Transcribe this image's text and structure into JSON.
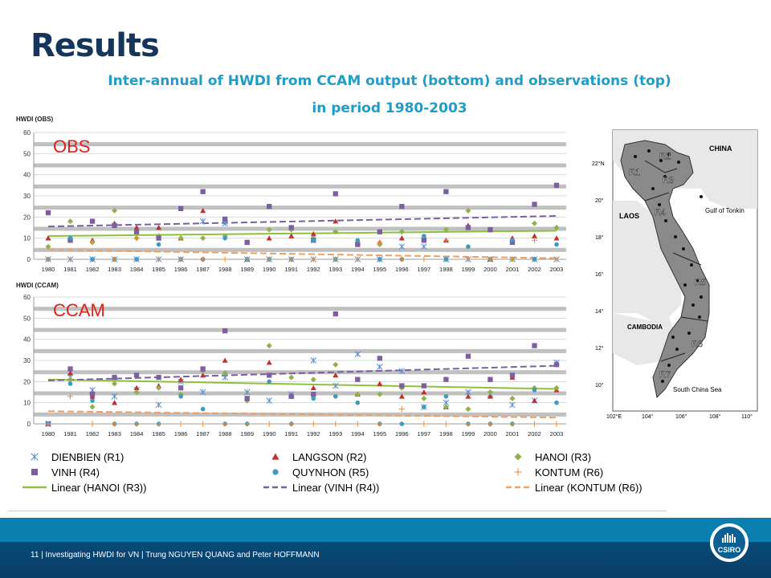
{
  "slide": {
    "title": "Results",
    "subtitle_line1": "Inter-annual of HWDI from CCAM output (bottom) and observations (top)",
    "subtitle_line2": "in period 1980-2003",
    "footer": "11 | Investigating HWDI for VN | Trung NGUYEN QUANG and Peter HOFFMANN",
    "logo_text": "CSIRO"
  },
  "map": {
    "labels": [
      "CHINA",
      "LAOS",
      "Gulf of Tonkin",
      "CAMBODIA",
      "South China Sea"
    ],
    "regions": [
      "R1",
      "R2",
      "R3",
      "R4",
      "R5",
      "R6",
      "R7"
    ],
    "lat_labels": [
      "22°N",
      "20°",
      "18°",
      "16°",
      "14°",
      "12°",
      "10°"
    ],
    "lon_labels": [
      "102°E",
      "104°",
      "106°",
      "108°",
      "110°"
    ]
  },
  "legend": [
    {
      "key": "dienbien",
      "label": "DIENBIEN (R1)",
      "marker": "asterisk",
      "color": "#5b8fd1"
    },
    {
      "key": "langson",
      "label": "LANGSON (R2)",
      "marker": "triangle",
      "color": "#c0302d"
    },
    {
      "key": "hanoi",
      "label": "HANOI (R3)",
      "marker": "diamond",
      "color": "#8fb04a"
    },
    {
      "key": "vinh",
      "label": "VINH (R4)",
      "marker": "square",
      "color": "#7b5fa0"
    },
    {
      "key": "quynhon",
      "label": "QUYNHON (R5)",
      "marker": "circle",
      "color": "#3a9cc0"
    },
    {
      "key": "kontum",
      "label": "KONTUM (R6)",
      "marker": "plus",
      "color": "#f08a30"
    },
    {
      "key": "lin_hanoi",
      "label": "Linear (HANOI (R3))",
      "marker": "line-solid",
      "color": "#8fc040"
    },
    {
      "key": "lin_vinh",
      "label": "Linear (VINH (R4))",
      "marker": "line-dash",
      "color": "#7b5fa0"
    },
    {
      "key": "lin_kontum",
      "label": "Linear (KONTUM (R6))",
      "marker": "line-dash",
      "color": "#f0a060"
    }
  ],
  "chart_data": [
    {
      "type": "scatter",
      "id": "obs",
      "title": "OBS",
      "ylabel": "HWDI (OBS)",
      "ylim": [
        0,
        60
      ],
      "yticks": [
        0,
        10,
        20,
        30,
        40,
        50,
        60
      ],
      "x": [
        "1980",
        "1981",
        "1982",
        "1983",
        "1984",
        "1985",
        "1986",
        "1987",
        "1988",
        "1989",
        "1990",
        "1991",
        "1992",
        "1993",
        "1994",
        "1995",
        "1996",
        "1997",
        "1998",
        "1999",
        "2000",
        "2001",
        "2002",
        "2003"
      ],
      "grid": "horizontal-bands",
      "series": [
        {
          "key": "dienbien",
          "values": [
            0,
            0,
            0,
            0,
            0,
            0,
            0,
            18,
            17,
            0,
            0,
            0,
            0,
            0,
            0,
            0,
            6,
            6,
            0,
            0,
            0,
            0,
            0,
            0
          ]
        },
        {
          "key": "langson",
          "values": [
            10,
            10,
            9,
            17,
            15,
            15,
            10,
            23,
            19,
            0,
            10,
            11,
            12,
            18,
            8,
            8,
            10,
            10,
            9,
            16,
            0,
            10,
            11,
            10
          ]
        },
        {
          "key": "hanoi",
          "values": [
            6,
            18,
            8,
            23,
            10,
            11,
            10,
            10,
            11,
            8,
            14,
            14,
            10,
            13,
            8,
            7,
            13,
            10,
            14,
            23,
            0,
            0,
            17,
            15
          ]
        },
        {
          "key": "vinh",
          "values": [
            22,
            9,
            18,
            16,
            13,
            10,
            24,
            32,
            19,
            8,
            25,
            15,
            9,
            31,
            7,
            13,
            25,
            9,
            32,
            15,
            14,
            8,
            26,
            35
          ]
        },
        {
          "key": "quynhon",
          "values": [
            0,
            10,
            0,
            0,
            0,
            7,
            0,
            0,
            10,
            0,
            0,
            0,
            9,
            0,
            9,
            0,
            0,
            11,
            0,
            6,
            0,
            9,
            0,
            7
          ]
        },
        {
          "key": "kontum",
          "values": [
            0,
            0,
            8,
            0,
            10,
            0,
            0,
            0,
            0,
            0,
            0,
            0,
            0,
            0,
            0,
            8,
            0,
            0,
            9,
            0,
            0,
            0,
            9,
            0
          ]
        }
      ],
      "trends": [
        {
          "key": "lin_hanoi",
          "start": 11,
          "end": 13.5
        },
        {
          "key": "lin_vinh",
          "start": 15.5,
          "end": 20.5
        },
        {
          "key": "lin_kontum",
          "start": 4.5,
          "end": 0.5
        }
      ]
    },
    {
      "type": "scatter",
      "id": "ccam",
      "title": "CCAM",
      "ylabel": "HWDI (CCAM)",
      "ylim": [
        0,
        60
      ],
      "yticks": [
        0,
        10,
        20,
        30,
        40,
        50,
        60
      ],
      "x": [
        "1980",
        "1981",
        "1982",
        "1983",
        "1984",
        "1985",
        "1986",
        "1987",
        "1988",
        "1989",
        "1990",
        "1991",
        "1992",
        "1993",
        "1994",
        "1995",
        "1996",
        "1997",
        "1998",
        "1999",
        "2000",
        "2001",
        "2002",
        "2003"
      ],
      "grid": "horizontal-bands",
      "series": [
        {
          "key": "dienbien",
          "values": [
            0,
            22,
            16,
            13,
            16,
            9,
            20,
            15,
            22,
            15,
            11,
            14,
            30,
            18,
            33,
            27,
            25,
            8,
            10,
            15,
            14,
            9,
            11,
            29
          ]
        },
        {
          "key": "langson",
          "values": [
            0,
            24,
            13,
            10,
            17,
            18,
            21,
            23,
            30,
            12,
            29,
            13,
            17,
            23,
            14,
            19,
            13,
            15,
            8,
            13,
            13,
            22,
            11,
            16
          ]
        },
        {
          "key": "hanoi",
          "values": [
            0,
            21,
            8,
            19,
            15,
            17,
            14,
            25,
            24,
            11,
            37,
            22,
            21,
            28,
            14,
            14,
            17,
            12,
            8,
            7,
            15,
            12,
            17,
            17
          ]
        },
        {
          "key": "vinh",
          "values": [
            0,
            26,
            14,
            22,
            23,
            22,
            17,
            26,
            44,
            12,
            23,
            13,
            14,
            52,
            21,
            31,
            18,
            18,
            21,
            32,
            21,
            23,
            37,
            28
          ]
        },
        {
          "key": "quynhon",
          "values": [
            0,
            19,
            11,
            0,
            0,
            0,
            13,
            7,
            0,
            0,
            20,
            0,
            12,
            13,
            10,
            0,
            0,
            8,
            13,
            0,
            0,
            0,
            16,
            10
          ]
        },
        {
          "key": "kontum",
          "values": [
            0,
            13,
            0,
            0,
            0,
            0,
            0,
            0,
            0,
            0,
            0,
            0,
            0,
            0,
            0,
            0,
            7,
            0,
            0,
            0,
            0,
            0,
            0,
            0
          ]
        }
      ],
      "trends": [
        {
          "key": "lin_hanoi",
          "start": 21,
          "end": 16.5
        },
        {
          "key": "lin_vinh",
          "start": 20.5,
          "end": 27.5
        },
        {
          "key": "lin_kontum",
          "start": 6,
          "end": 3
        }
      ]
    }
  ]
}
